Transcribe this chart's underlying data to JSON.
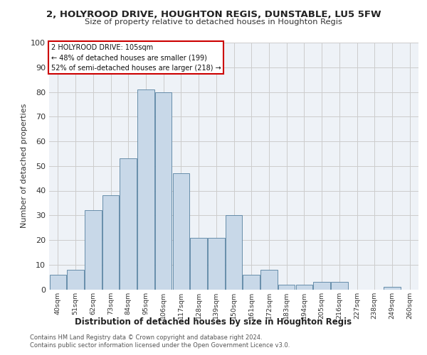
{
  "title1": "2, HOLYROOD DRIVE, HOUGHTON REGIS, DUNSTABLE, LU5 5FW",
  "title2": "Size of property relative to detached houses in Houghton Regis",
  "xlabel": "Distribution of detached houses by size in Houghton Regis",
  "ylabel": "Number of detached properties",
  "categories": [
    "40sqm",
    "51sqm",
    "62sqm",
    "73sqm",
    "84sqm",
    "95sqm",
    "106sqm",
    "117sqm",
    "128sqm",
    "139sqm",
    "150sqm",
    "161sqm",
    "172sqm",
    "183sqm",
    "194sqm",
    "205sqm",
    "216sqm",
    "227sqm",
    "238sqm",
    "249sqm",
    "260sqm"
  ],
  "values": [
    6,
    8,
    32,
    38,
    53,
    81,
    80,
    47,
    21,
    21,
    30,
    6,
    8,
    2,
    2,
    3,
    3,
    0,
    0,
    1,
    0
  ],
  "bar_color": "#c8d8e8",
  "bar_edge_color": "#5580a0",
  "subject_label": "2 HOLYROOD DRIVE: 105sqm",
  "annotation_line1": "← 48% of detached houses are smaller (199)",
  "annotation_line2": "52% of semi-detached houses are larger (218) →",
  "annotation_box_color": "#ffffff",
  "annotation_box_edge_color": "#cc0000",
  "ylim": [
    0,
    100
  ],
  "yticks": [
    0,
    10,
    20,
    30,
    40,
    50,
    60,
    70,
    80,
    90,
    100
  ],
  "grid_color": "#cccccc",
  "bg_color": "#eef2f7",
  "footer1": "Contains HM Land Registry data © Crown copyright and database right 2024.",
  "footer2": "Contains public sector information licensed under the Open Government Licence v3.0."
}
